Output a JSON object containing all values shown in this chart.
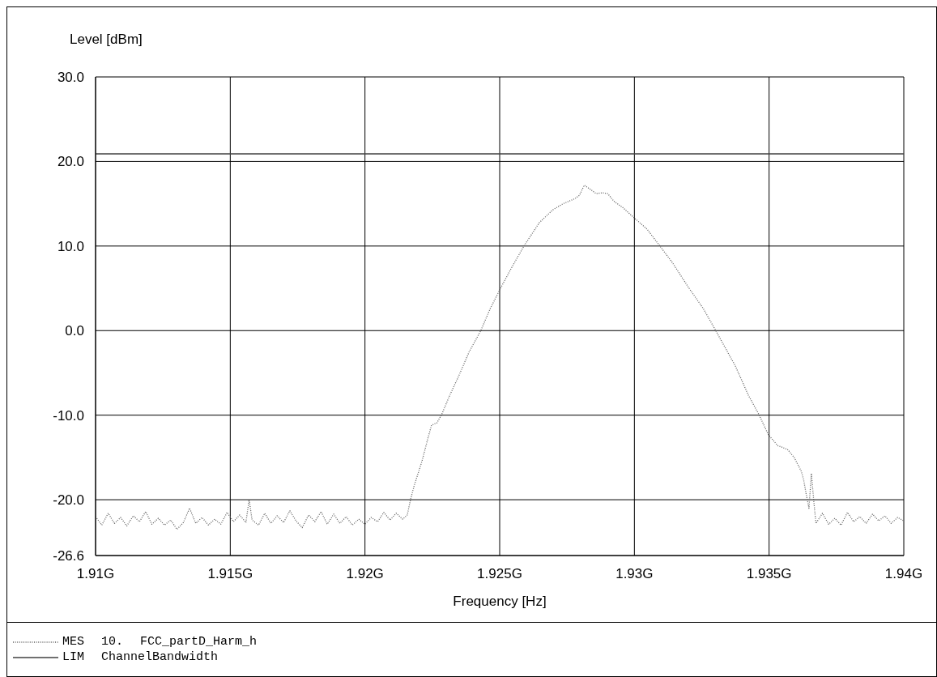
{
  "chart_data": {
    "type": "line",
    "xlabel": "Frequency [Hz]",
    "ylabel": "Level [dBm]",
    "xlim": [
      1.91,
      1.94
    ],
    "ylim": [
      -26.6,
      30
    ],
    "xticks": [
      {
        "value": 1.91,
        "label": "1.91G"
      },
      {
        "value": 1.915,
        "label": "1.915G"
      },
      {
        "value": 1.92,
        "label": "1.92G"
      },
      {
        "value": 1.925,
        "label": "1.925G"
      },
      {
        "value": 1.93,
        "label": "1.93G"
      },
      {
        "value": 1.935,
        "label": "1.935G"
      },
      {
        "value": 1.94,
        "label": "1.94G"
      }
    ],
    "yticks": [
      {
        "value": 30,
        "label": "30.0"
      },
      {
        "value": 20,
        "label": "20.0"
      },
      {
        "value": 10,
        "label": "10.0"
      },
      {
        "value": 0,
        "label": "0.0"
      },
      {
        "value": -10,
        "label": "-10.0"
      },
      {
        "value": -20,
        "label": "-20.0"
      },
      {
        "value": -26.6,
        "label": "-26.6"
      }
    ],
    "grid": true,
    "legend": "bottom",
    "series": [
      {
        "name": "MES 10. FCC_partD_Harm_h",
        "color": "#606060",
        "line_style": "dotted",
        "x": [
          1.91,
          1.91023,
          1.91047,
          1.9107,
          1.91093,
          1.91116,
          1.9114,
          1.91163,
          1.91186,
          1.91209,
          1.91233,
          1.91256,
          1.91279,
          1.91302,
          1.91326,
          1.91349,
          1.91372,
          1.91395,
          1.91419,
          1.91442,
          1.91465,
          1.91488,
          1.91512,
          1.91535,
          1.91558,
          1.9157,
          1.91581,
          1.91605,
          1.91628,
          1.91651,
          1.91674,
          1.91698,
          1.91721,
          1.91744,
          1.91767,
          1.91791,
          1.91814,
          1.91837,
          1.9186,
          1.91884,
          1.91907,
          1.9193,
          1.91953,
          1.91977,
          1.92,
          1.92023,
          1.92047,
          1.9207,
          1.92093,
          1.92116,
          1.9214,
          1.92157,
          1.92169,
          1.92183,
          1.92198,
          1.92212,
          1.92233,
          1.92247,
          1.92267,
          1.92285,
          1.92314,
          1.92349,
          1.92387,
          1.9243,
          1.92465,
          1.92503,
          1.92547,
          1.9259,
          1.92648,
          1.92698,
          1.92735,
          1.92779,
          1.92796,
          1.92814,
          1.92837,
          1.92858,
          1.92881,
          1.92901,
          1.92924,
          1.92959,
          1.92997,
          1.93047,
          1.9309,
          1.93142,
          1.93201,
          1.93256,
          1.93302,
          1.93375,
          1.93424,
          1.93462,
          1.93497,
          1.93532,
          1.93549,
          1.9357,
          1.93593,
          1.93619,
          1.93628,
          1.93637,
          1.93648,
          1.93657,
          1.93666,
          1.93674,
          1.93698,
          1.93721,
          1.93744,
          1.93767,
          1.93791,
          1.93814,
          1.93837,
          1.9386,
          1.93884,
          1.93907,
          1.9393,
          1.93953,
          1.93977,
          1.94
        ],
        "values": [
          -22.0,
          -23.0,
          -21.6,
          -22.8,
          -22.1,
          -23.1,
          -21.9,
          -22.6,
          -21.4,
          -22.9,
          -22.2,
          -23.0,
          -22.4,
          -23.5,
          -22.7,
          -21.0,
          -22.8,
          -22.1,
          -23.0,
          -22.3,
          -22.9,
          -21.5,
          -22.6,
          -21.8,
          -22.7,
          -20.0,
          -22.4,
          -23.0,
          -21.6,
          -22.8,
          -21.9,
          -22.7,
          -21.3,
          -22.5,
          -23.3,
          -21.8,
          -22.6,
          -21.4,
          -22.9,
          -21.7,
          -22.8,
          -22.0,
          -23.0,
          -22.3,
          -22.9,
          -22.1,
          -22.6,
          -21.5,
          -22.4,
          -21.6,
          -22.3,
          -21.8,
          -20.0,
          -18.3,
          -16.8,
          -15.4,
          -12.8,
          -11.2,
          -10.9,
          -9.9,
          -7.7,
          -5.3,
          -2.5,
          0.0,
          2.6,
          5.0,
          7.6,
          10.0,
          12.8,
          14.3,
          15.0,
          15.6,
          16.0,
          17.2,
          16.7,
          16.2,
          16.3,
          16.2,
          15.3,
          14.5,
          13.4,
          12.0,
          10.2,
          8.0,
          5.1,
          2.6,
          0.0,
          -4.2,
          -7.7,
          -9.9,
          -12.3,
          -13.6,
          -13.8,
          -14.1,
          -15.0,
          -16.6,
          -17.6,
          -19.2,
          -21.0,
          -16.9,
          -20.2,
          -22.8,
          -21.6,
          -22.9,
          -22.2,
          -23.0,
          -21.5,
          -22.6,
          -22.0,
          -22.8,
          -21.7,
          -22.5,
          -21.9,
          -22.8,
          -22.1,
          -22.5
        ]
      },
      {
        "name": "LIM ChannelBandwidth",
        "color": "#404040",
        "line_style": "solid",
        "x": [
          1.91,
          1.94
        ],
        "values": [
          20.9,
          20.9
        ]
      }
    ]
  }
}
